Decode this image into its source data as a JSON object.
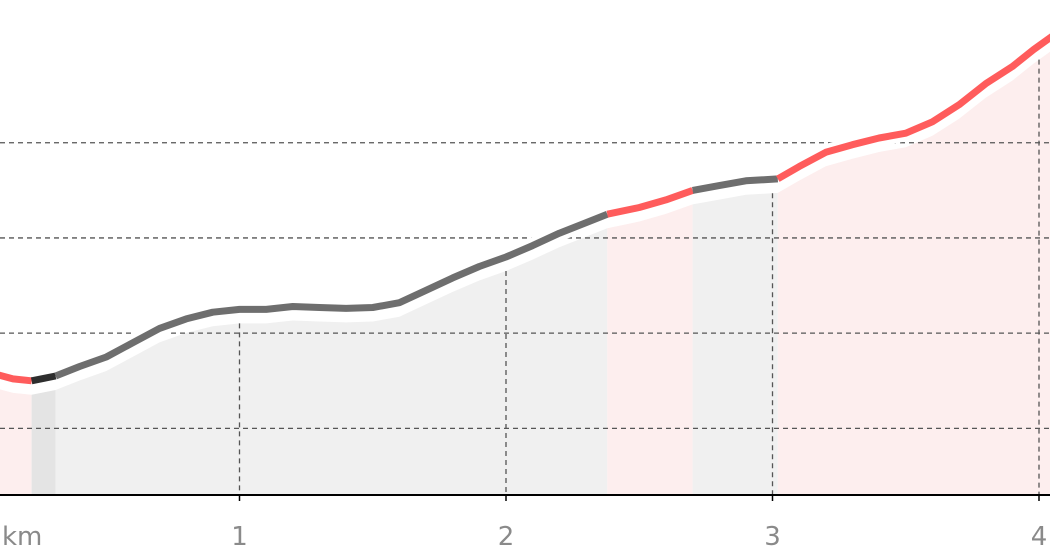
{
  "chart_data": {
    "type": "area",
    "title": "",
    "xlabel": "",
    "ylabel": "",
    "x_unit_label": "km",
    "xlim": [
      0,
      4
    ],
    "x_ticks": [
      {
        "value": 1,
        "label": "1"
      },
      {
        "value": 2,
        "label": "2"
      },
      {
        "value": 3,
        "label": "3"
      },
      {
        "value": 4,
        "label": "4"
      }
    ],
    "ylim": [
      0,
      5.2
    ],
    "y_gridlines": [
      0.7,
      1.7,
      2.7,
      3.7
    ],
    "grid": true,
    "legend": "none",
    "colors": {
      "flat": "#6e6e6e",
      "steep": "#ff5c5c",
      "dark": "#2e2e2e",
      "fill_flat": "#f0f0f0",
      "fill_steep": "#fdeeee",
      "fill_dark": "#e4e4e4",
      "grid": "#555555",
      "axis": "#000000"
    },
    "segments": [
      {
        "x0": -0.05,
        "x1": 0.07,
        "grade": "dark"
      },
      {
        "x0": 0.07,
        "x1": 0.22,
        "grade": "steep"
      },
      {
        "x0": 0.22,
        "x1": 0.31,
        "grade": "dark"
      },
      {
        "x0": 0.31,
        "x1": 2.38,
        "grade": "flat"
      },
      {
        "x0": 2.38,
        "x1": 2.7,
        "grade": "steep"
      },
      {
        "x0": 2.7,
        "x1": 3.02,
        "grade": "flat"
      },
      {
        "x0": 3.02,
        "x1": 4.1,
        "grade": "steep"
      }
    ],
    "series": [
      {
        "x": [
          -0.05,
          0,
          0.07,
          0.15,
          0.22,
          0.31,
          0.4,
          0.5,
          0.6,
          0.7,
          0.8,
          0.9,
          1.0,
          1.1,
          1.2,
          1.3,
          1.4,
          1.5,
          1.6,
          1.7,
          1.8,
          1.9,
          2.0,
          2.1,
          2.2,
          2.3,
          2.38,
          2.5,
          2.6,
          2.7,
          2.8,
          2.9,
          3.02,
          3.1,
          3.2,
          3.3,
          3.4,
          3.5,
          3.6,
          3.7,
          3.8,
          3.9,
          3.98,
          4.05,
          4.1
        ],
        "y": [
          1.5,
          1.35,
          1.28,
          1.22,
          1.2,
          1.25,
          1.35,
          1.45,
          1.6,
          1.75,
          1.85,
          1.92,
          1.95,
          1.95,
          1.98,
          1.97,
          1.96,
          1.97,
          2.02,
          2.15,
          2.28,
          2.4,
          2.5,
          2.62,
          2.75,
          2.86,
          2.95,
          3.02,
          3.1,
          3.2,
          3.25,
          3.3,
          3.32,
          3.45,
          3.6,
          3.68,
          3.75,
          3.8,
          3.92,
          4.1,
          4.32,
          4.5,
          4.68,
          4.82,
          4.82
        ]
      }
    ]
  }
}
